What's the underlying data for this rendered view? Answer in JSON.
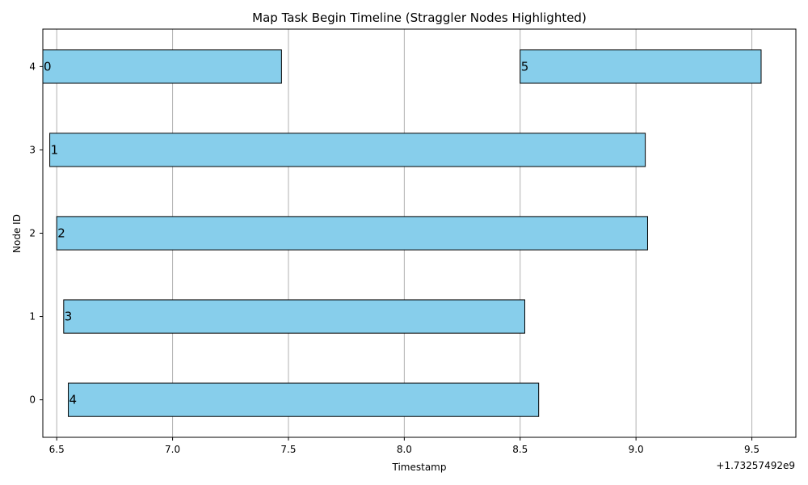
{
  "chart_data": {
    "type": "bar",
    "orientation": "horizontal",
    "title": "Map Task Begin Timeline (Straggler Nodes Highlighted)",
    "xlabel": "Timestamp",
    "ylabel": "Node ID",
    "x_offset_label": "+1.73257492e9",
    "xlim": [
      6.44,
      9.69
    ],
    "ylim": [
      -0.45,
      4.45
    ],
    "x_ticks": [
      6.5,
      7.0,
      7.5,
      8.0,
      8.5,
      9.0,
      9.5
    ],
    "x_tick_labels": [
      "6.5",
      "7.0",
      "7.5",
      "8.0",
      "8.5",
      "9.0",
      "9.5"
    ],
    "y_ticks": [
      0,
      1,
      2,
      3,
      4
    ],
    "y_tick_labels": [
      "0",
      "1",
      "2",
      "3",
      "4"
    ],
    "y_tick_colors": [
      "#000000",
      "#000000",
      "#ff0000",
      "#ff0000",
      "#000000"
    ],
    "grid": "x",
    "bar_color": "#87ceeb",
    "bar_edge_color": "#000000",
    "tasks": [
      {
        "node": 4,
        "start": 6.44,
        "end": 7.47,
        "label": "0"
      },
      {
        "node": 4,
        "start": 8.5,
        "end": 9.54,
        "label": "5"
      },
      {
        "node": 3,
        "start": 6.47,
        "end": 9.04,
        "label": "1"
      },
      {
        "node": 2,
        "start": 6.5,
        "end": 9.05,
        "label": "2"
      },
      {
        "node": 1,
        "start": 6.53,
        "end": 8.52,
        "label": "3"
      },
      {
        "node": 0,
        "start": 6.55,
        "end": 8.58,
        "label": "4"
      }
    ]
  }
}
